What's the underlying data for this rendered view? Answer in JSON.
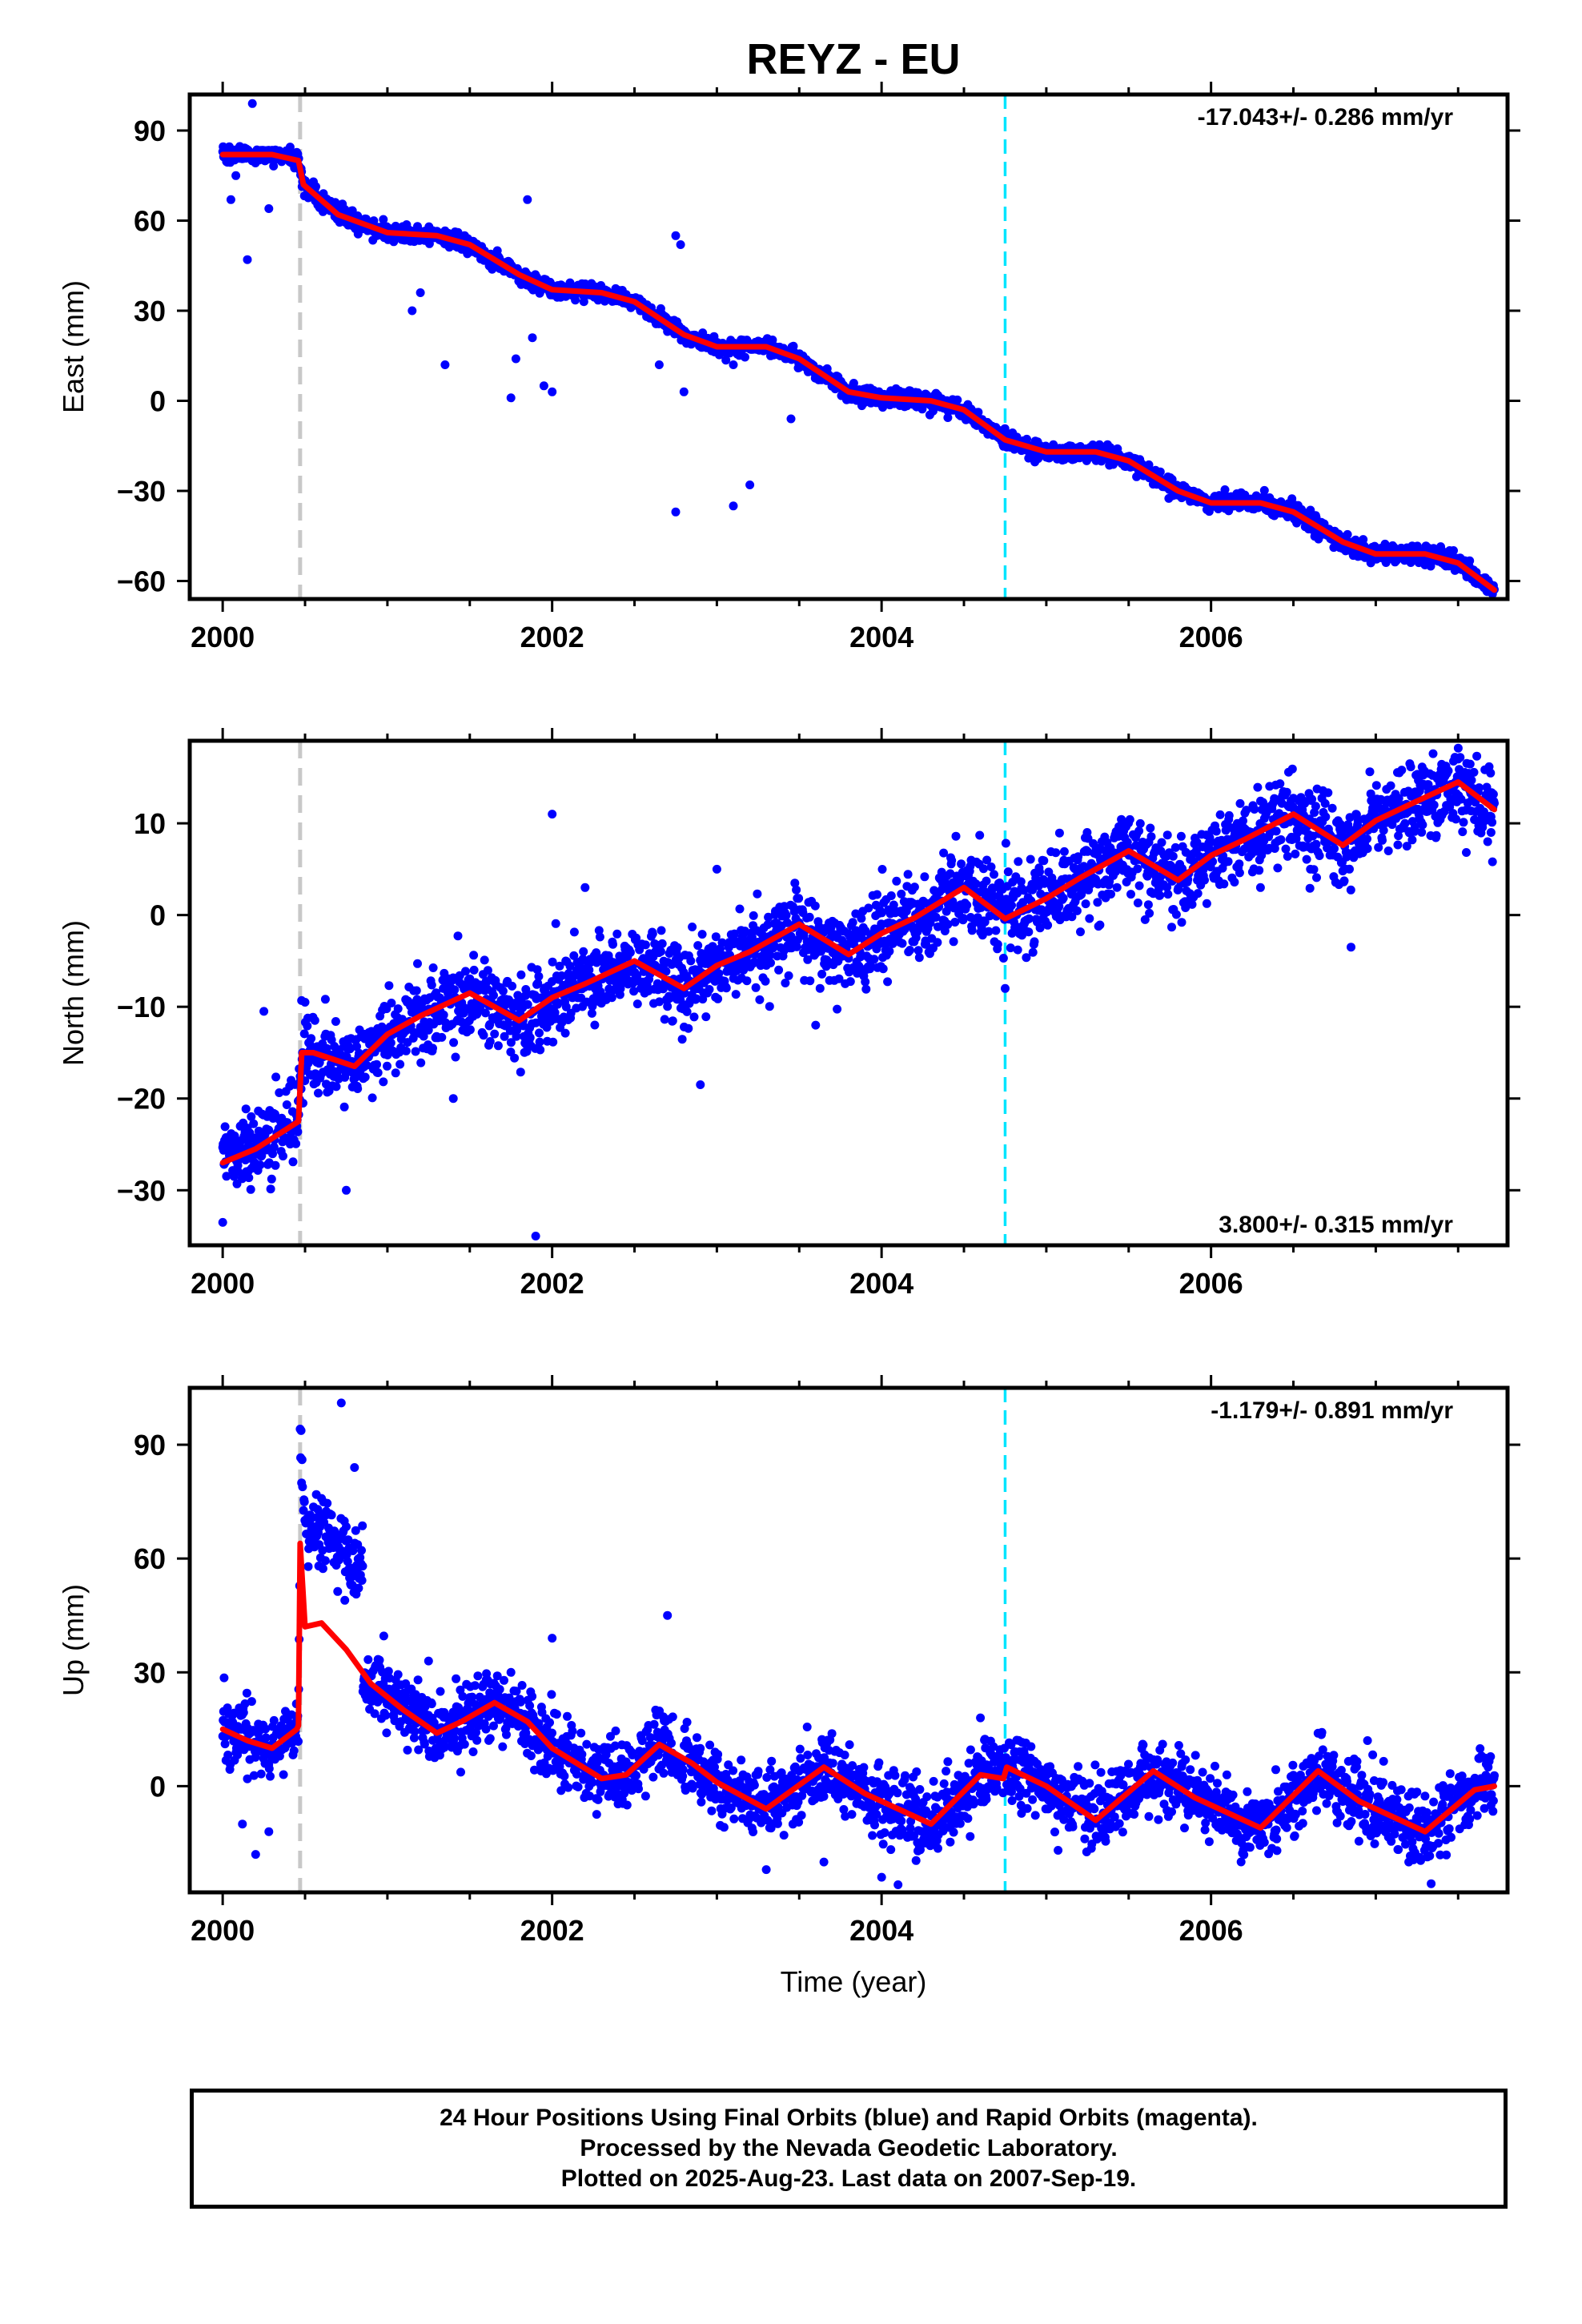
{
  "title": "REYZ - EU",
  "xlabel": "Time (year)",
  "colors": {
    "data": "#0000ff",
    "model": "#ff0000",
    "grey_line": "#c8c8c8",
    "cyan_line": "#00e5ff"
  },
  "caption": [
    "24 Hour Positions Using Final Orbits (blue) and Rapid Orbits (magenta).",
    "Processed by the Nevada Geodetic Laboratory.",
    "Plotted on 2025-Aug-23. Last data on 2007-Sep-19."
  ],
  "chart_data": [
    {
      "type": "scatter",
      "ylabel": "East (mm)",
      "rate_text": "-17.043+/- 0.286 mm/yr",
      "rate_position": "top-right",
      "xlim": [
        1999.8,
        2007.8
      ],
      "ylim": [
        -66,
        102
      ],
      "xticks": [
        2000,
        2002,
        2004,
        2006
      ],
      "yticks": [
        -60,
        -30,
        0,
        30,
        60,
        90
      ],
      "vlines": [
        {
          "x": 2000.47,
          "color": "grey"
        },
        {
          "x": 2004.75,
          "color": "cyan"
        }
      ],
      "series": [
        {
          "x": [
            2000.0,
            2000.3,
            2000.46,
            2000.49,
            2000.7,
            2001.0,
            2001.3,
            2001.5,
            2001.8,
            2002.0,
            2002.3,
            2002.5,
            2002.8,
            2003.0,
            2003.3,
            2003.5,
            2003.8,
            2004.0,
            2004.3,
            2004.5,
            2004.75,
            2005.0,
            2005.3,
            2005.5,
            2005.8,
            2006.0,
            2006.3,
            2006.5,
            2006.8,
            2007.0,
            2007.3,
            2007.5,
            2007.72
          ],
          "values": [
            82,
            82,
            80,
            72,
            62,
            56,
            55,
            52,
            42,
            37,
            36,
            33,
            22,
            18,
            18,
            14,
            3,
            1,
            0,
            -3,
            -13,
            -17,
            -17,
            -20,
            -30,
            -34,
            -34,
            -37,
            -47,
            -51,
            -51,
            -54,
            -63
          ]
        }
      ],
      "outliers": [
        [
          2000.05,
          67
        ],
        [
          2000.15,
          47
        ],
        [
          2000.08,
          75
        ],
        [
          2000.18,
          99
        ],
        [
          2000.28,
          64
        ],
        [
          2001.15,
          30
        ],
        [
          2001.2,
          36
        ],
        [
          2001.35,
          12
        ],
        [
          2001.75,
          1
        ],
        [
          2001.78,
          14
        ],
        [
          2001.85,
          67
        ],
        [
          2001.88,
          21
        ],
        [
          2001.95,
          5
        ],
        [
          2002.0,
          3
        ],
        [
          2002.65,
          12
        ],
        [
          2002.75,
          55
        ],
        [
          2002.78,
          52
        ],
        [
          2002.8,
          3
        ],
        [
          2002.75,
          -37
        ],
        [
          2003.1,
          -35
        ],
        [
          2003.2,
          -28
        ],
        [
          2003.45,
          -6
        ],
        [
          2003.1,
          12
        ]
      ]
    },
    {
      "type": "scatter",
      "ylabel": "North (mm)",
      "rate_text": "3.800+/- 0.315 mm/yr",
      "rate_position": "bottom-right",
      "xlim": [
        1999.8,
        2007.8
      ],
      "ylim": [
        -36,
        19
      ],
      "xticks": [
        2000,
        2002,
        2004,
        2006
      ],
      "yticks": [
        -30,
        -20,
        -10,
        0,
        10
      ],
      "vlines": [
        {
          "x": 2000.47,
          "color": "grey"
        },
        {
          "x": 2004.75,
          "color": "cyan"
        }
      ],
      "series": [
        {
          "x": [
            2000.0,
            2000.2,
            2000.46,
            2000.48,
            2000.55,
            2000.8,
            2001.0,
            2001.2,
            2001.5,
            2001.8,
            2002.0,
            2002.2,
            2002.5,
            2002.8,
            2003.0,
            2003.2,
            2003.5,
            2003.8,
            2004.0,
            2004.2,
            2004.5,
            2004.75,
            2005.0,
            2005.2,
            2005.5,
            2005.8,
            2006.0,
            2006.2,
            2006.5,
            2006.8,
            2007.0,
            2007.2,
            2007.5,
            2007.72
          ],
          "values": [
            -27,
            -25.5,
            -22.5,
            -15,
            -15,
            -16.5,
            -13,
            -11,
            -8.5,
            -11.5,
            -9,
            -7.5,
            -5,
            -8,
            -5.5,
            -4,
            -1,
            -4.3,
            -2,
            -0.3,
            3,
            -0.4,
            1.8,
            4,
            7,
            3.8,
            6.5,
            8.2,
            11,
            7.6,
            10.3,
            12,
            14.5,
            11.5
          ]
        }
      ],
      "outliers": [
        [
          2000.0,
          -33.5
        ],
        [
          2000.25,
          -10.5
        ],
        [
          2000.5,
          -9.5
        ],
        [
          2000.75,
          -30
        ],
        [
          2001.4,
          -20
        ],
        [
          2001.9,
          -35
        ],
        [
          2002.0,
          11
        ],
        [
          2002.2,
          3
        ],
        [
          2002.9,
          -18.5
        ],
        [
          2003.0,
          5
        ],
        [
          2003.6,
          -12
        ],
        [
          2004.75,
          -8
        ],
        [
          2005.6,
          -0.5
        ],
        [
          2006.85,
          -3.5
        ],
        [
          2006.3,
          3
        ],
        [
          2007.5,
          17
        ],
        [
          2007.7,
          9
        ]
      ]
    },
    {
      "type": "scatter",
      "ylabel": "Up (mm)",
      "rate_text": "-1.179+/- 0.891 mm/yr",
      "rate_position": "top-right",
      "xlim": [
        1999.8,
        2007.8
      ],
      "ylim": [
        -28,
        105
      ],
      "xticks": [
        2000,
        2002,
        2004,
        2006
      ],
      "yticks": [
        0,
        30,
        60,
        90
      ],
      "vlines": [
        {
          "x": 2000.47,
          "color": "grey"
        },
        {
          "x": 2004.75,
          "color": "cyan"
        }
      ],
      "series": [
        {
          "x": [
            2000.0,
            2000.15,
            2000.3,
            2000.45,
            2000.46,
            2000.47,
            2000.5,
            2000.6,
            2000.75,
            2000.9,
            2001.1,
            2001.3,
            2001.45,
            2001.65,
            2001.85,
            2002.0,
            2002.15,
            2002.3,
            2002.45,
            2002.65,
            2002.85,
            2003.0,
            2003.3,
            2003.65,
            2003.9,
            2004.0,
            2004.3,
            2004.6,
            2004.74,
            2004.76,
            2005.0,
            2005.3,
            2005.65,
            2005.9,
            2006.0,
            2006.3,
            2006.65,
            2006.9,
            2007.0,
            2007.3,
            2007.6,
            2007.72
          ],
          "values": [
            15,
            12,
            10,
            15,
            16,
            64,
            42,
            43,
            36,
            27,
            20,
            14,
            17,
            22,
            17,
            10,
            6,
            2,
            3,
            11,
            6,
            1,
            -6,
            5,
            -2,
            -4,
            -10,
            3,
            2,
            5,
            0,
            -9,
            4,
            -3,
            -5,
            -11,
            4,
            -4,
            -6,
            -12,
            -1,
            0
          ]
        }
      ],
      "outliers": [
        [
          2000.12,
          -10
        ],
        [
          2000.2,
          -18
        ],
        [
          2000.28,
          -12
        ],
        [
          2000.72,
          101
        ],
        [
          2000.8,
          84
        ],
        [
          2000.85,
          58
        ],
        [
          2001.25,
          33
        ],
        [
          2001.6,
          28
        ],
        [
          2001.75,
          30
        ],
        [
          2002.0,
          39
        ],
        [
          2002.7,
          45
        ],
        [
          2003.3,
          -22
        ],
        [
          2003.65,
          -20
        ],
        [
          2004.0,
          -24
        ],
        [
          2004.1,
          -26
        ],
        [
          2004.6,
          18
        ],
        [
          2006.4,
          -17
        ],
        [
          2006.95,
          12
        ],
        [
          2007.2,
          -20
        ]
      ]
    }
  ]
}
